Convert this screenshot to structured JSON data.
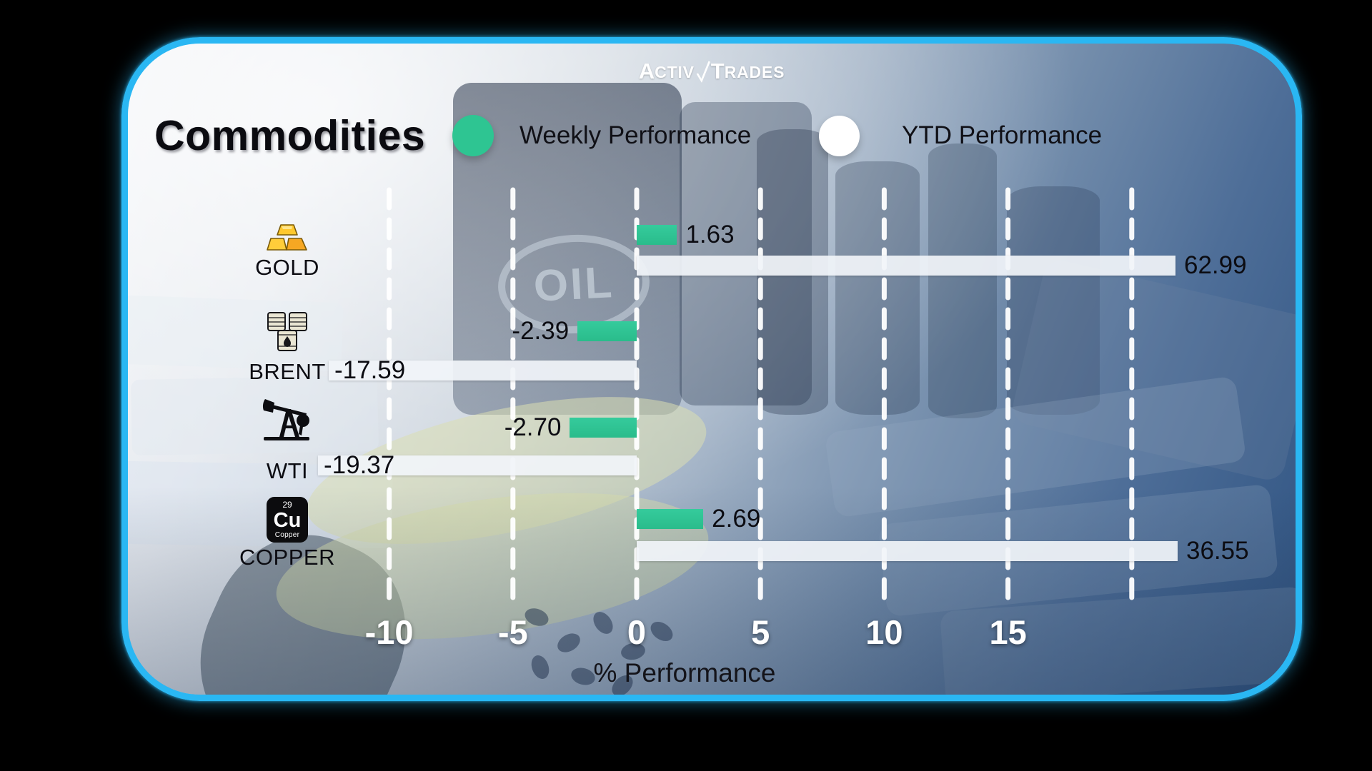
{
  "logo": {
    "part1": "ACTIV",
    "part2": "TRADES"
  },
  "header": {
    "title": "Commodities"
  },
  "legend": {
    "weekly_label": "Weekly Performance",
    "ytd_label": "YTD Performance",
    "weekly_color": "#2ec592",
    "ytd_color": "#ffffff"
  },
  "background": {
    "oil_text": "OIL"
  },
  "colors": {
    "card_border": "#2ab7f3",
    "weekly_bar": "#2ec592",
    "ytd_bar": "#f1f4f8",
    "tick_text": "#ffffff"
  },
  "chart_data": {
    "type": "bar",
    "orientation": "horizontal",
    "title": "Commodities",
    "xlabel": "% Performance",
    "ylabel": "",
    "x_ticks": [
      -10,
      -5,
      0,
      5,
      10,
      15
    ],
    "x_tick_labels": [
      "-10",
      "-5",
      "0",
      "5",
      "10",
      "15"
    ],
    "xlim": [
      -12.5,
      21
    ],
    "grid": true,
    "legend_position": "top",
    "series_names": [
      "Weekly Performance",
      "YTD Performance"
    ],
    "rows": [
      {
        "name": "GOLD",
        "icon": "gold-bars",
        "weekly": 1.63,
        "weekly_label": "1.63",
        "ytd": 62.99,
        "ytd_label": "62.99"
      },
      {
        "name": "BRENT",
        "icon": "oil-barrels",
        "weekly": -2.39,
        "weekly_label": "-2.39",
        "ytd": -17.59,
        "ytd_label": "-17.59"
      },
      {
        "name": "WTI",
        "icon": "oil-pump",
        "weekly": -2.7,
        "weekly_label": "-2.70",
        "ytd": -19.37,
        "ytd_label": "-19.37"
      },
      {
        "name": "COPPER",
        "icon": "copper-element",
        "weekly": 2.69,
        "weekly_label": "2.69",
        "ytd": 36.55,
        "ytd_label": "36.55"
      }
    ],
    "copper_element": {
      "atomic_number": "29",
      "symbol": "Cu",
      "element_name": "Copper"
    }
  }
}
